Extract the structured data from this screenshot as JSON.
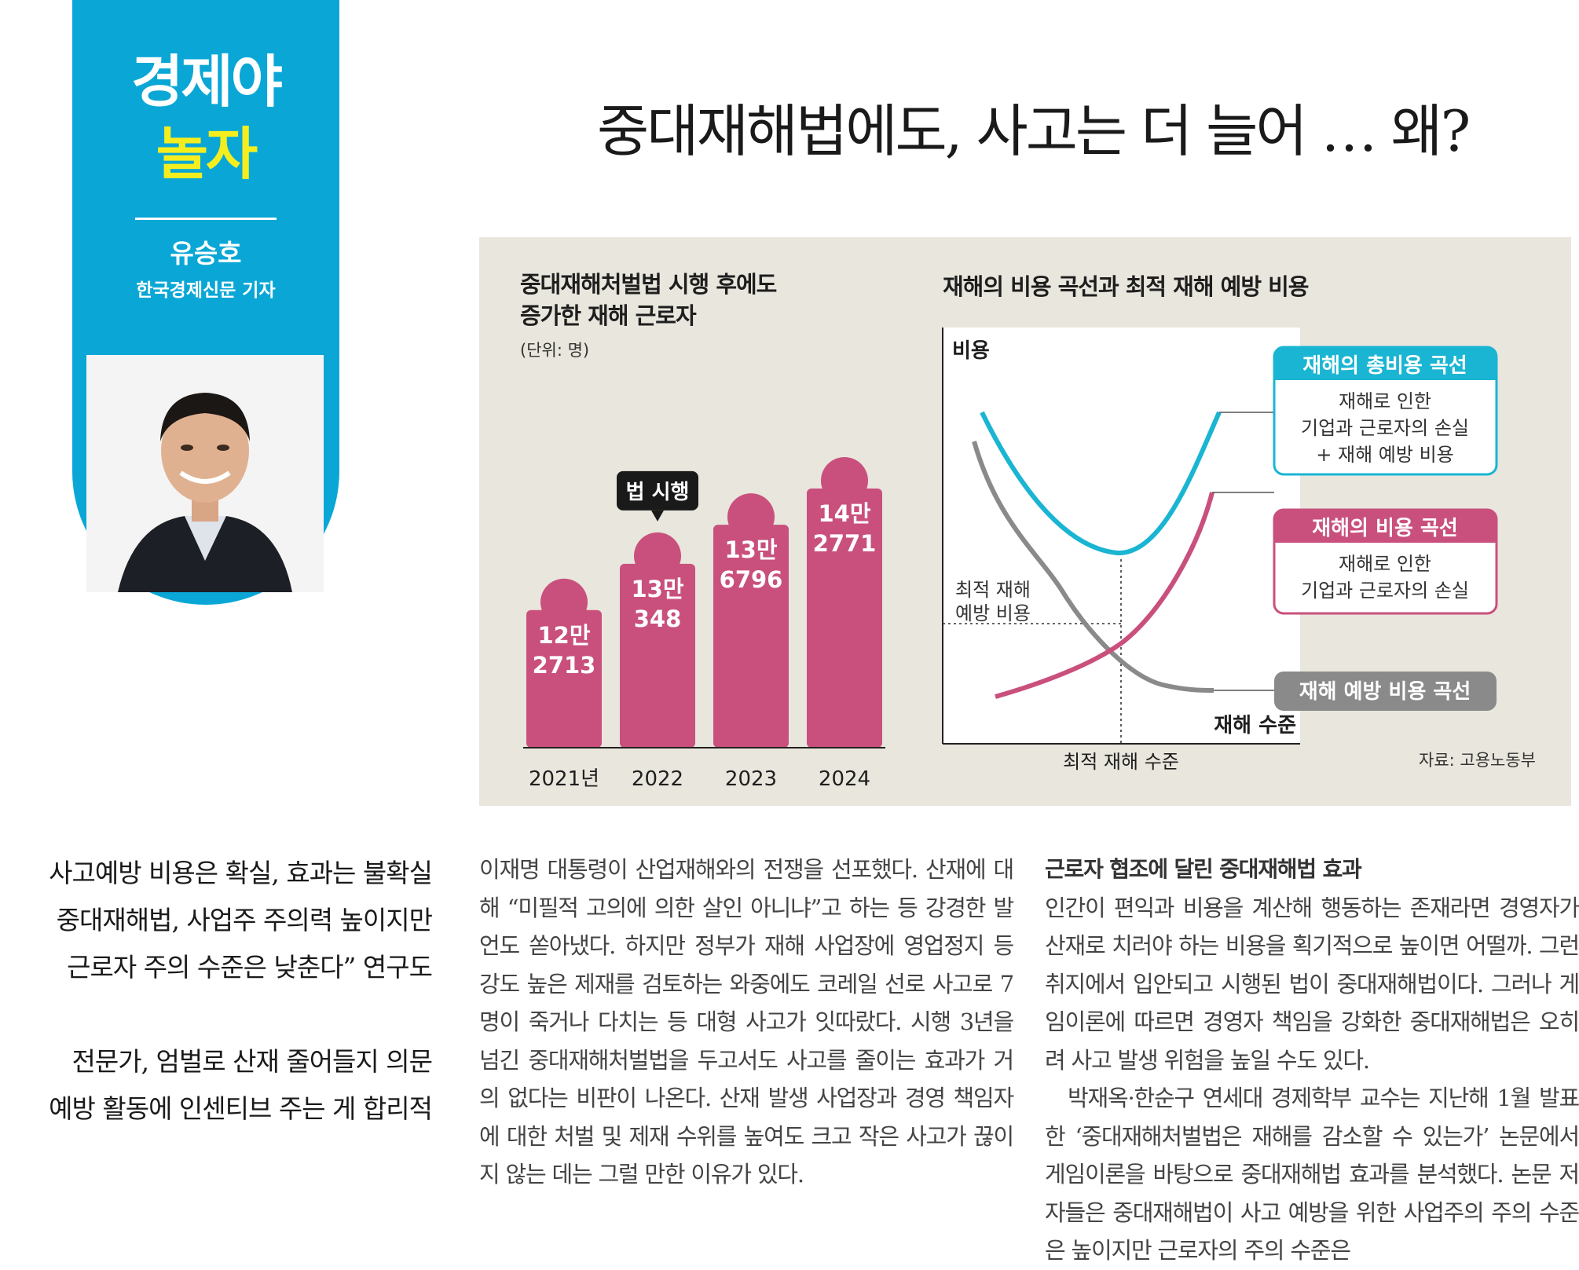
{
  "column": {
    "title_line1": "경제야",
    "title_line2": "놀자",
    "author_name": "유승호",
    "author_role": "한국경제신문 기자"
  },
  "headline": "중대재해법에도, 사고는 더 늘어 … 왜?",
  "deck": [
    "사고예방 비용은 확실, 효과는 불확실",
    "중대재해법, 사업주 주의력 높이지만",
    "근로자 주의 수준은 낮춘다” 연구도",
    "전문가, 엄벌로 산재 줄어들지 의문",
    "예방 활동에 인센티브 주는 게 합리적"
  ],
  "infographic": {
    "source": "자료: 고용노동부"
  },
  "chart_data": [
    {
      "type": "bar",
      "title": "중대재해처벌법 시행 후에도 증가한 재해 근로자",
      "title_lines": [
        "중대재해처벌법 시행 후에도",
        "증가한 재해 근로자"
      ],
      "unit": "(단위: 명)",
      "categories": [
        "2021년",
        "2022",
        "2023",
        "2024"
      ],
      "values": [
        122713,
        130348,
        136796,
        142771
      ],
      "value_labels": [
        [
          "12만",
          "2713"
        ],
        [
          "13만",
          "348"
        ],
        [
          "13만",
          "6796"
        ],
        [
          "14만",
          "2771"
        ]
      ],
      "annotation": {
        "category": "2022",
        "text": "법 시행"
      },
      "colors": {
        "bar": "#c9507d",
        "callout": "#1a1a1a"
      }
    },
    {
      "type": "line",
      "title": "재해의 비용 곡선과 최적 재해 예방 비용",
      "ylabel": "비용",
      "xlabel": "재해 수준",
      "x_marker_label": "최적 재해 수준",
      "y_marker_label": [
        "최적 재해",
        "예방 비용"
      ],
      "series": [
        {
          "name": "재해의 총비용 곡선",
          "desc": [
            "재해로 인한",
            "기업과 근로자의 손실",
            "+ 재해 예방 비용"
          ],
          "color": "#1ab5d2"
        },
        {
          "name": "재해의 비용 곡선",
          "desc": [
            "재해로 인한",
            "기업과 근로자의 손실"
          ],
          "color": "#c9507d"
        },
        {
          "name": "재해 예방 비용 곡선",
          "desc": [],
          "color": "#8a8a8a"
        }
      ]
    }
  ],
  "body_col1": "이재명 대통령이 산업재해와의 전쟁을 선포했다. 산재에 대해 “미필적 고의에 의한 살인 아니냐”고 하는 등 강경한 발언도 쏟아냈다. 하지만 정부가 재해 사업장에 영업정지 등 강도 높은 제재를 검토하는 와중에도 코레일 선로 사고로 7명이 죽거나 다치는 등 대형 사고가 잇따랐다. 시행 3년을 넘긴 중대재해처벌법을 두고서도 사고를 줄이는 효과가 거의 없다는 비판이 나온다. 산재 발생 사업장과 경영 책임자에 대한 처벌 및 제재 수위를 높여도 크고 작은 사고가 끊이지 않는 데는 그럴 만한 이유가 있다.",
  "body_col2": {
    "subhead": "근로자 협조에 달린 중대재해법 효과",
    "para1": "인간이 편익과 비용을 계산해 행동하는 존재라면 경영자가 산재로 치러야 하는 비용을 획기적으로 높이면 어떨까. 그런 취지에서 입안되고 시행된 법이 중대재해법이다. 그러나 게임이론에 따르면 경영자 책임을 강화한 중대재해법은 오히려 사고 발생 위험을 높일 수도 있다.",
    "para2": "박재옥·한순구 연세대 경제학부 교수는 지난해 1월 발표한 ‘중대재해처벌법은 재해를 감소할 수 있는가’ 논문에서 게임이론을 바탕으로 중대재해법 효과를 분석했다. 논문 저자들은 중대재해법이 사고 예방을 위한 사업주의 주의 수준은 높이지만 근로자의 주의 수준은"
  }
}
